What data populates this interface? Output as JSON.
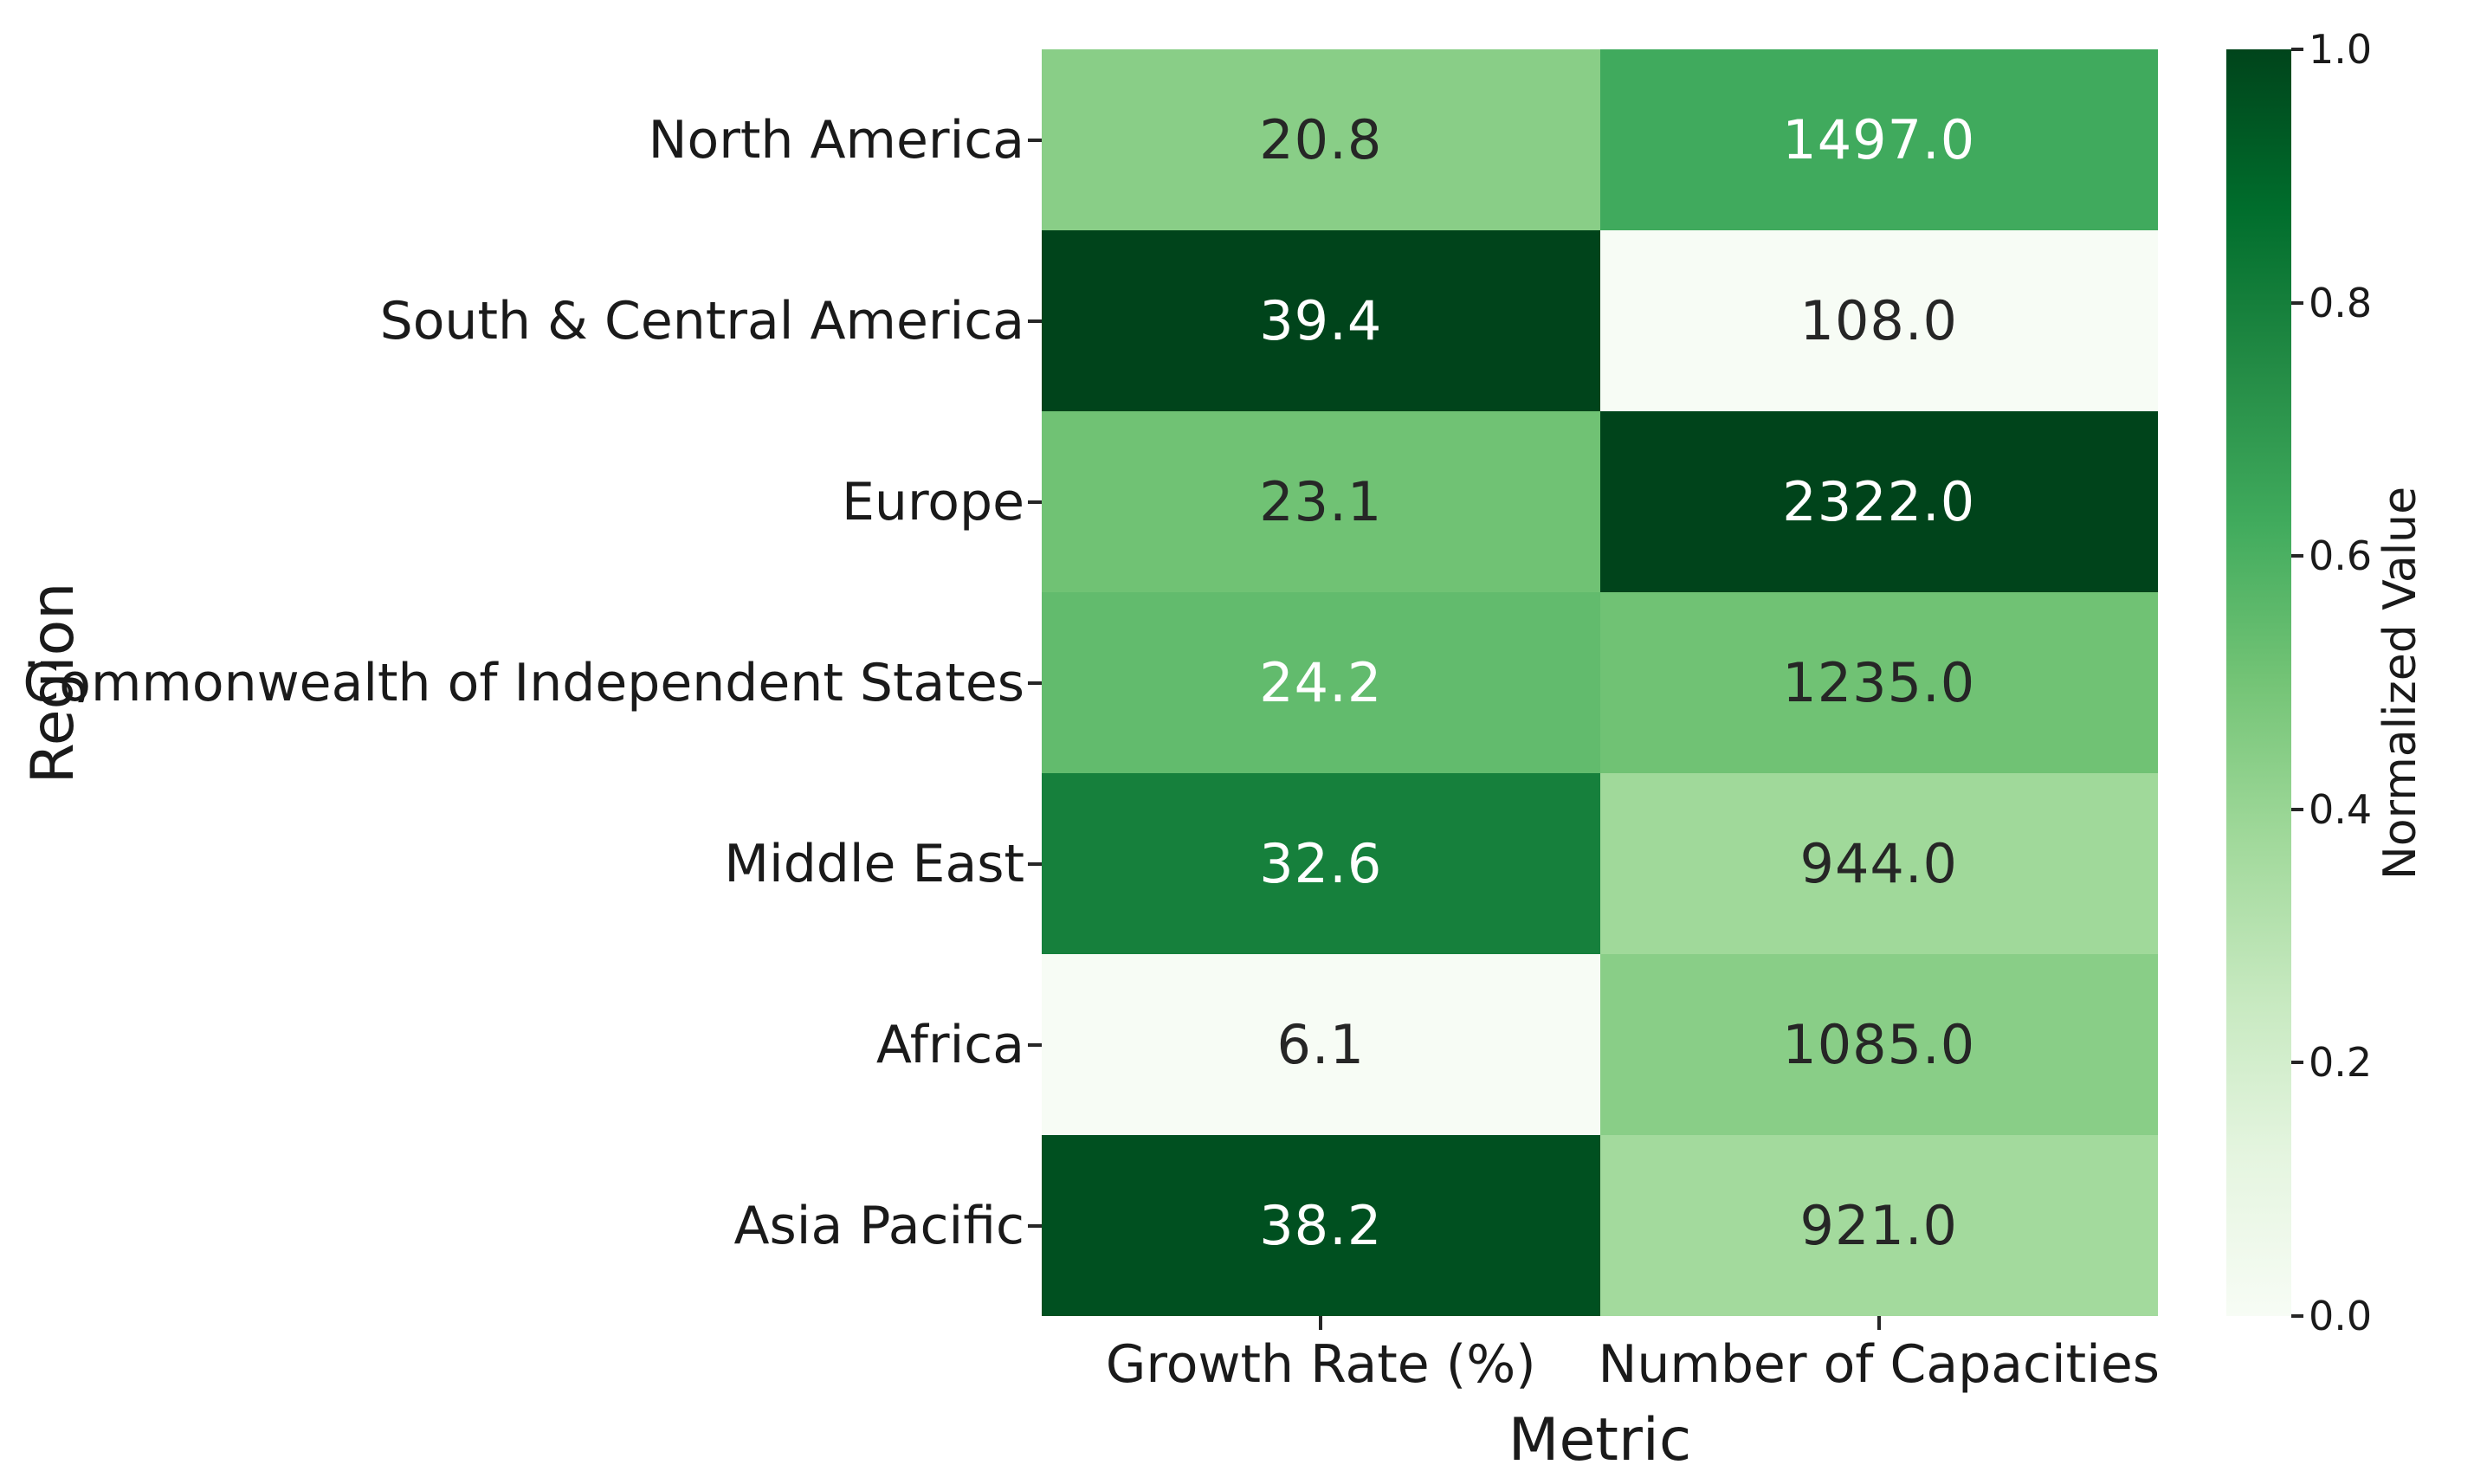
{
  "chart_data": {
    "type": "heatmap",
    "xlabel": "Metric",
    "ylabel": "Region",
    "colormap": "Greens",
    "columns": [
      "Growth Rate (%)",
      "Number of Capacities"
    ],
    "rows": [
      "North America",
      "South & Central America",
      "Europe",
      "Commonwealth of Independent States",
      "Middle East",
      "Africa",
      "Asia Pacific"
    ],
    "values": [
      [
        20.8,
        1497.0
      ],
      [
        39.4,
        108.0
      ],
      [
        23.1,
        2322.0
      ],
      [
        24.2,
        1235.0
      ],
      [
        32.6,
        944.0
      ],
      [
        6.1,
        1085.0
      ],
      [
        38.2,
        921.0
      ]
    ],
    "cell_labels": [
      [
        "20.8",
        "1497.0"
      ],
      [
        "39.4",
        "108.0"
      ],
      [
        "23.1",
        "2322.0"
      ],
      [
        "24.2",
        "1235.0"
      ],
      [
        "32.6",
        "944.0"
      ],
      [
        "6.1",
        "1085.0"
      ],
      [
        "38.2",
        "921.0"
      ]
    ],
    "normalized_per_column": [
      [
        0.441,
        0.627
      ],
      [
        1.0,
        0.0
      ],
      [
        0.511,
        1.0
      ],
      [
        0.544,
        0.509
      ],
      [
        0.796,
        0.378
      ],
      [
        0.0,
        0.441
      ],
      [
        0.964,
        0.367
      ]
    ],
    "cell_colors": [
      [
        "#89ce87",
        "#40aa5d"
      ],
      [
        "#00441b",
        "#f7fcf5"
      ],
      [
        "#70c274",
        "#00441b"
      ],
      [
        "#62bb6d",
        "#70c274"
      ],
      [
        "#16803c",
        "#a0d99a"
      ],
      [
        "#f7fcf5",
        "#89ce87"
      ],
      [
        "#005020",
        "#a3da9d"
      ]
    ],
    "cell_text_colors": [
      [
        "dark",
        "white"
      ],
      [
        "white",
        "dark"
      ],
      [
        "dark",
        "white"
      ],
      [
        "white",
        "dark"
      ],
      [
        "white",
        "dark"
      ],
      [
        "dark",
        "dark"
      ],
      [
        "white",
        "dark"
      ]
    ],
    "text_dark_hex": "#262626",
    "text_white_hex": "#ffffff",
    "grid": false,
    "colorbar": {
      "label": "Normalized Value",
      "range": [
        0.0,
        1.0
      ],
      "ticks": [
        {
          "label": "1.0",
          "value": 1.0
        },
        {
          "label": "0.8",
          "value": 0.8
        },
        {
          "label": "0.6",
          "value": 0.6
        },
        {
          "label": "0.4",
          "value": 0.4
        },
        {
          "label": "0.2",
          "value": 0.2
        },
        {
          "label": "0.0",
          "value": 0.0
        }
      ],
      "gradient_stops_bottom_to_top": [
        "#f7fcf5",
        "#e5f5e0",
        "#c7e9c0",
        "#a1d99b",
        "#74c476",
        "#41ab5d",
        "#238b45",
        "#006d2c",
        "#00441b"
      ]
    }
  }
}
